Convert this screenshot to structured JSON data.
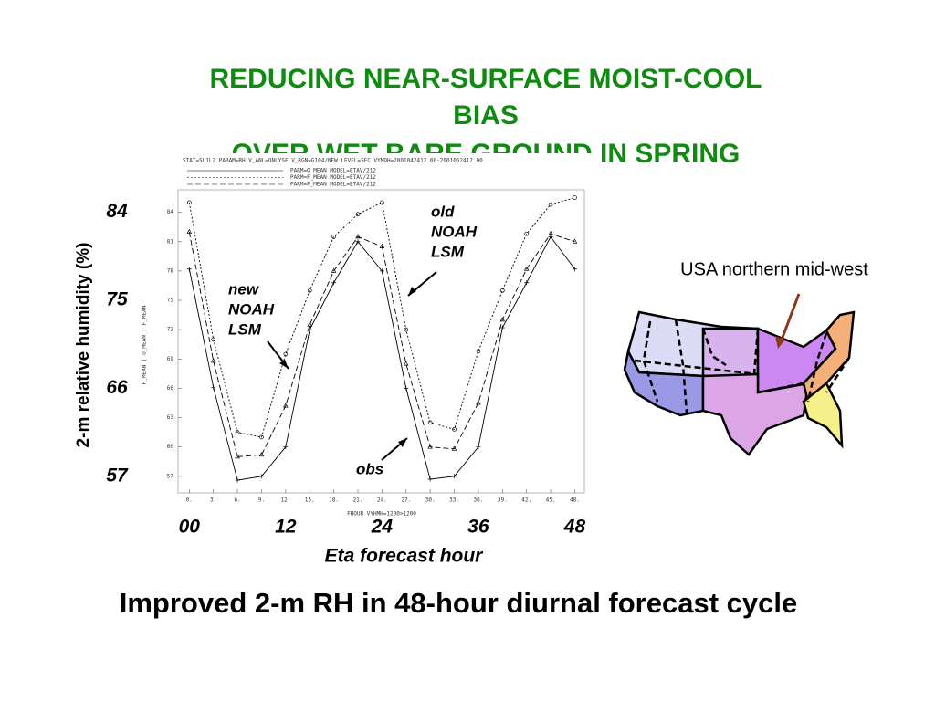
{
  "slide": {
    "title": [
      "REDUCING NEAR-SURFACE MOIST-COOL",
      "BIAS",
      "OVER WET BARE GROUND IN SPRING"
    ],
    "caption": "Improved 2-m RH in 48-hour diurnal forecast cycle",
    "map_label": "USA northern mid-west"
  },
  "chart_data": {
    "type": "line",
    "header": "STAT=SL1L2 PARAM=RH V_ANL=ONLYSF V_RGN=G104/NEW LEVEL=SFC VYMDH=2001042412 00-2001052412 00",
    "inner_y_label": "F_MEAN | O_MEAN | F_MEAN",
    "inner_x_label": "FHOUR VYHMH=1200>1200",
    "y_label": "2-m relative humidity (%)",
    "x_label": "Eta forecast hour",
    "annotations": {
      "old": [
        "old",
        "NOAH",
        "LSM"
      ],
      "new": [
        "new",
        "NOAH",
        "LSM"
      ],
      "obs": "obs"
    },
    "x": [
      0,
      3,
      6,
      9,
      12,
      15,
      18,
      21,
      24,
      27,
      30,
      33,
      36,
      39,
      42,
      45,
      48
    ],
    "series": [
      {
        "name": "PARM=O_MEAN MODEL=ETAV/212",
        "color": "#000000",
        "dash": "none",
        "marker": "plus",
        "values": [
          78.2,
          66.1,
          56.6,
          57,
          60,
          72,
          76.8,
          81,
          78,
          66,
          56.7,
          57,
          60,
          72.2,
          76.8,
          81.5,
          78.2
        ]
      },
      {
        "name": "PARM=F_MEAN MODEL=ETAV/212",
        "color": "#000000",
        "dash": "2,2",
        "marker": "circle",
        "values": [
          85,
          71,
          61.5,
          61,
          69.5,
          76,
          81.5,
          83.8,
          85,
          72,
          62.5,
          61.8,
          69.8,
          76,
          81.8,
          84.8,
          85.5
        ]
      },
      {
        "name": "PARM=F_MEAN MODEL=ETAV/212",
        "color": "#000000",
        "dash": "6,3",
        "marker": "triangle",
        "values": [
          82,
          68.8,
          59,
          59.2,
          64.2,
          72.5,
          78,
          81.5,
          80.5,
          68.5,
          60,
          59.8,
          64.5,
          73,
          78.2,
          81.8,
          81
        ]
      }
    ],
    "xlim": [
      -1.4,
      49.2
    ],
    "ylim": [
      55.3,
      86.3
    ],
    "yticks": [
      57,
      66,
      75,
      84
    ],
    "xticks": [
      {
        "value": 0,
        "label": "00"
      },
      12,
      24,
      36,
      48
    ],
    "yticks_minor": [
      57,
      60,
      63,
      66,
      69,
      72,
      75,
      78,
      81,
      84
    ],
    "xticks_minor": [
      {
        "value": 0,
        "label": "0."
      },
      {
        "value": 3,
        "label": "3."
      },
      {
        "value": 6,
        "label": "6."
      },
      {
        "value": 9,
        "label": "9."
      },
      {
        "value": 12,
        "label": "12."
      },
      {
        "value": 15,
        "label": "15."
      },
      {
        "value": 18,
        "label": "18."
      },
      {
        "value": 21,
        "label": "21."
      },
      {
        "value": 24,
        "label": "24."
      },
      {
        "value": 27,
        "label": "27."
      },
      {
        "value": 30,
        "label": "30."
      },
      {
        "value": 33,
        "label": "33."
      },
      {
        "value": 36,
        "label": "36."
      },
      {
        "value": 39,
        "label": "39."
      },
      {
        "value": 42,
        "label": "42."
      },
      {
        "value": 45,
        "label": "45."
      },
      {
        "value": 48,
        "label": "48."
      }
    ]
  }
}
